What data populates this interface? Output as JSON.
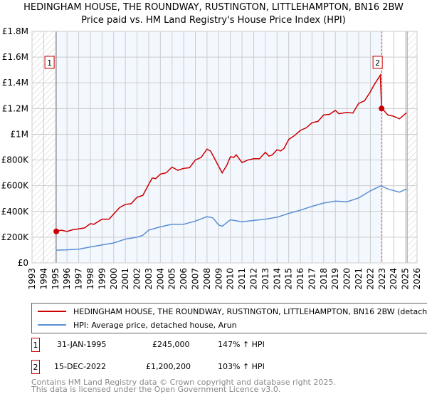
{
  "title_line1": "HEDINGHAM HOUSE, THE ROUNDWAY, RUSTINGTON, LITTLEHAMPTON, BN16 2BW",
  "title_line2": "Price paid vs. HM Land Registry's House Price Index (HPI)",
  "chart_data": {
    "type": "line",
    "xlim": [
      1993,
      2026
    ],
    "ylim": [
      0,
      1800000
    ],
    "x_ticks": [
      "1993",
      "1994",
      "1995",
      "1996",
      "1997",
      "1998",
      "1999",
      "2000",
      "2001",
      "2002",
      "2003",
      "2004",
      "2005",
      "2006",
      "2007",
      "2008",
      "2009",
      "2010",
      "2011",
      "2012",
      "2013",
      "2014",
      "2015",
      "2016",
      "2017",
      "2018",
      "2019",
      "2020",
      "2021",
      "2022",
      "2023",
      "2024",
      "2025",
      "2026"
    ],
    "y_ticks": [
      {
        "v": 0,
        "label": "£0"
      },
      {
        "v": 200000,
        "label": "£200K"
      },
      {
        "v": 400000,
        "label": "£400K"
      },
      {
        "v": 600000,
        "label": "£600K"
      },
      {
        "v": 800000,
        "label": "£800K"
      },
      {
        "v": 1000000,
        "label": "£1M"
      },
      {
        "v": 1200000,
        "label": "£1.2M"
      },
      {
        "v": 1400000,
        "label": "£1.4M"
      },
      {
        "v": 1600000,
        "label": "£1.6M"
      },
      {
        "v": 1800000,
        "label": "£1.8M"
      }
    ],
    "grid": true,
    "colors": {
      "property": "#cc0000",
      "hpi": "#5b8fd4"
    },
    "series": [
      {
        "name": "property",
        "x": [
          1995.08,
          1995.5,
          1996,
          1996.5,
          1997,
          1997.5,
          1998,
          1998.3,
          1999,
          1999.6,
          2000,
          2000.5,
          2001,
          2001.5,
          2002,
          2002.5,
          2003,
          2003.3,
          2003.6,
          2004,
          2004.5,
          2005,
          2005.5,
          2006,
          2006.5,
          2007,
          2007.5,
          2008,
          2008.3,
          2008.6,
          2009,
          2009.3,
          2009.7,
          2010,
          2010.3,
          2010.5,
          2011,
          2011.5,
          2012,
          2012.5,
          2013,
          2013.3,
          2013.6,
          2014,
          2014.3,
          2014.6,
          2015,
          2015.5,
          2016,
          2016.5,
          2017,
          2017.5,
          2018,
          2018.5,
          2019,
          2019.3,
          2020,
          2020.5,
          2021,
          2021.5,
          2022,
          2022.3,
          2022.85,
          2022.96,
          2023.2,
          2023.5,
          2024,
          2024.5,
          2025,
          2025.1
        ],
        "y": [
          245000,
          255000,
          245000,
          258000,
          265000,
          272000,
          305000,
          300000,
          340000,
          340000,
          380000,
          430000,
          455000,
          460000,
          510000,
          525000,
          610000,
          660000,
          655000,
          690000,
          700000,
          745000,
          720000,
          735000,
          740000,
          800000,
          820000,
          885000,
          870000,
          820000,
          750000,
          700000,
          760000,
          825000,
          820000,
          840000,
          780000,
          800000,
          810000,
          810000,
          860000,
          830000,
          840000,
          880000,
          870000,
          890000,
          960000,
          990000,
          1030000,
          1050000,
          1090000,
          1100000,
          1150000,
          1155000,
          1185000,
          1160000,
          1170000,
          1165000,
          1240000,
          1260000,
          1330000,
          1380000,
          1460000,
          1200200,
          1180000,
          1150000,
          1140000,
          1120000,
          1160000,
          1165000
        ]
      },
      {
        "name": "hpi",
        "x": [
          1995.08,
          1996,
          1997,
          1998,
          1999,
          2000,
          2001,
          2002,
          2002.5,
          2003,
          2004,
          2005,
          2006,
          2007,
          2008,
          2008.5,
          2009,
          2009.3,
          2010,
          2011,
          2012,
          2013,
          2014,
          2015,
          2016,
          2017,
          2018,
          2019,
          2020,
          2021,
          2022,
          2022.9,
          2023.5,
          2024.5,
          2025.1
        ],
        "y": [
          99000,
          102000,
          107000,
          124000,
          140000,
          155000,
          185000,
          200000,
          215000,
          255000,
          280000,
          300000,
          300000,
          325000,
          360000,
          350000,
          295000,
          285000,
          335000,
          320000,
          330000,
          340000,
          355000,
          385000,
          410000,
          440000,
          465000,
          480000,
          475000,
          505000,
          560000,
          600000,
          575000,
          550000,
          575000
        ]
      }
    ],
    "sales": [
      {
        "num": "1",
        "x": 1995.08,
        "y": 245000
      },
      {
        "num": "2",
        "x": 2022.96,
        "y": 1200200
      }
    ]
  },
  "legend": [
    {
      "label": "HEDINGHAM HOUSE, THE ROUNDWAY, RUSTINGTON, LITTLEHAMPTON, BN16 2BW (detached house)",
      "color": "#cc0000"
    },
    {
      "label": "HPI: Average price, detached house, Arun",
      "color": "#5b8fd4"
    }
  ],
  "transactions": [
    {
      "num": "1",
      "date": "31-JAN-1995",
      "price": "£245,000",
      "hpi": "147% ↑ HPI"
    },
    {
      "num": "2",
      "date": "15-DEC-2022",
      "price": "£1,200,200",
      "hpi": "103% ↑ HPI"
    }
  ],
  "footer_line1": "Contains HM Land Registry data © Crown copyright and database right 2025.",
  "footer_line2": "This data is licensed under the Open Government Licence v3.0."
}
